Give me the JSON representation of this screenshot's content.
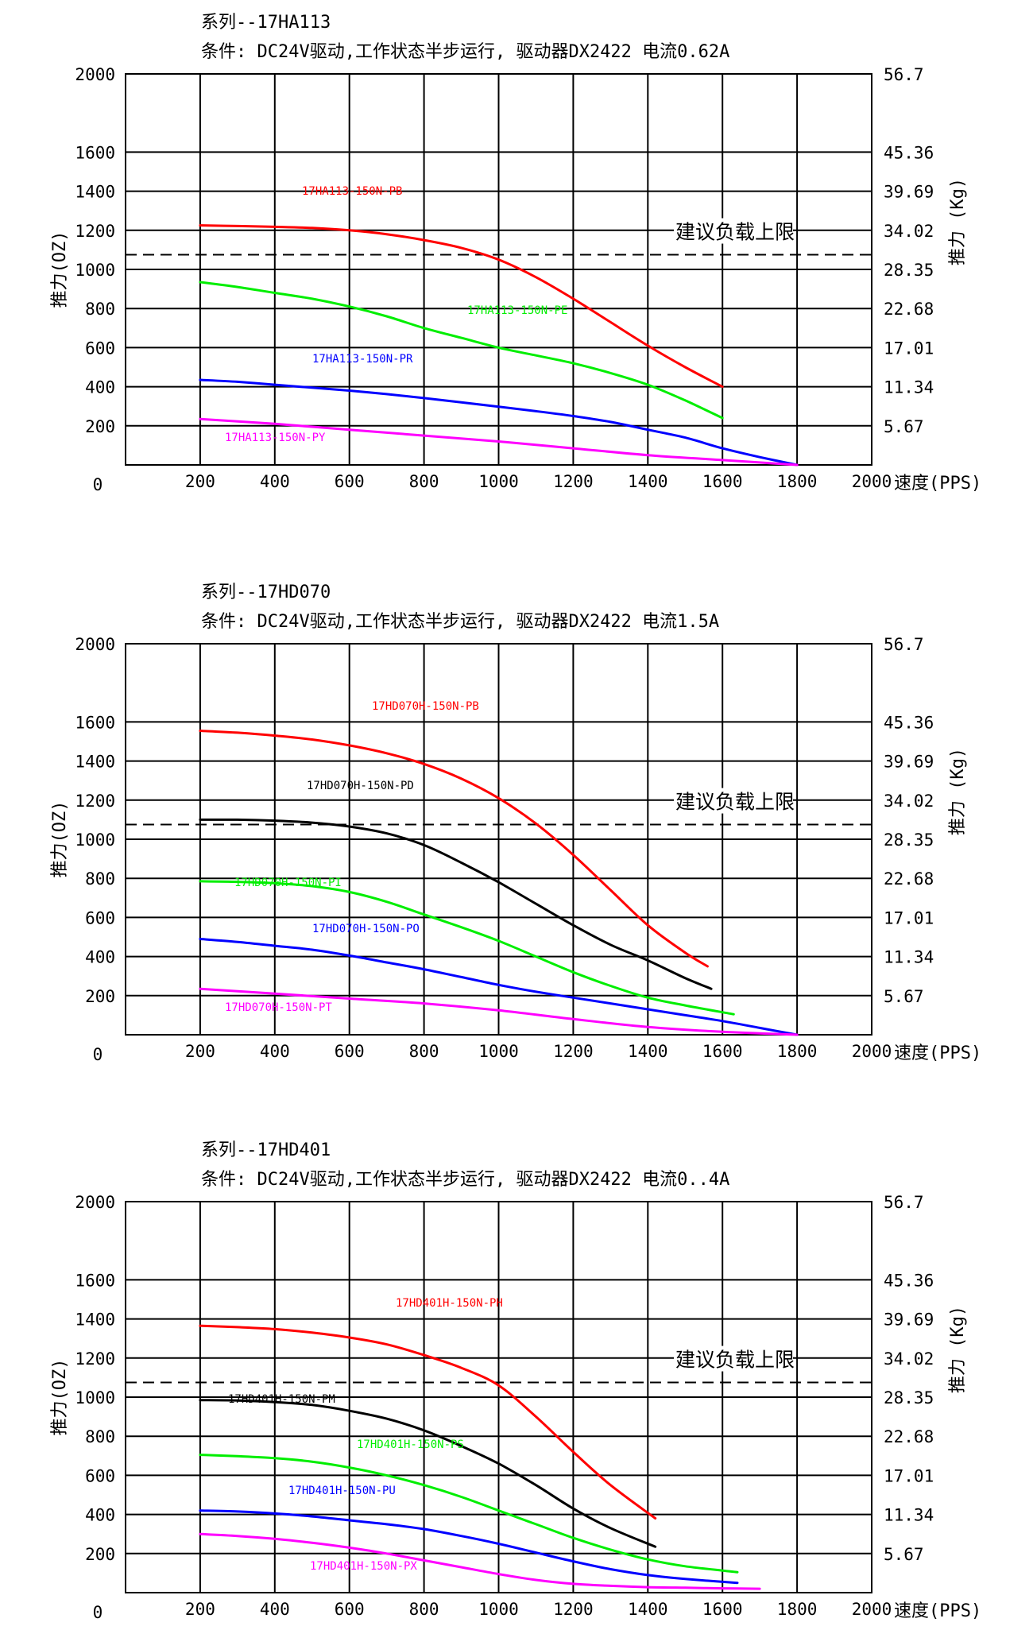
{
  "chart_data": [
    {
      "type": "line",
      "series_title": "系列--17HA113",
      "condition": "条件: DC24V驱动,工作状态半步运行, 驱动器DX2422 电流0.62A",
      "ylabel_left": "推力(OZ)",
      "ylabel_right": "推力 (Kg)",
      "xlabel": "速度(PPS)",
      "xlim": [
        0,
        2000
      ],
      "ylim": [
        0,
        2000
      ],
      "x_ticks": [
        "200",
        "400",
        "600",
        "800",
        "1000",
        "1200",
        "1400",
        "1600",
        "1800",
        "2000"
      ],
      "y_ticks": [
        "200",
        "400",
        "600",
        "800",
        "1000",
        "1200",
        "1400",
        "1600",
        "2000"
      ],
      "origin_label": "0",
      "right_ticks": [
        "56.7",
        "45.36",
        "39.69",
        "34.02",
        "28.35",
        "22.68",
        "17.01",
        "11.34",
        "5.67"
      ],
      "grid": true,
      "limit_value": 1075,
      "limit_label": "建议负载上限",
      "series": [
        {
          "name": "17HA113-150N-PB",
          "color": "#ff0000",
          "x": [
            200,
            300,
            400,
            500,
            600,
            700,
            800,
            900,
            1000,
            1100,
            1200,
            1300,
            1400,
            1500,
            1600
          ],
          "y": [
            1225,
            1222,
            1218,
            1212,
            1200,
            1180,
            1150,
            1110,
            1050,
            960,
            850,
            730,
            610,
            500,
            400
          ]
        },
        {
          "name": "17HA113-150N-PE",
          "color": "#00ee00",
          "x": [
            200,
            300,
            400,
            500,
            600,
            700,
            800,
            900,
            1000,
            1100,
            1200,
            1300,
            1400,
            1500,
            1600
          ],
          "y": [
            935,
            910,
            880,
            850,
            810,
            760,
            700,
            650,
            600,
            560,
            520,
            470,
            410,
            330,
            240
          ]
        },
        {
          "name": "17HA113-150N-PR",
          "color": "#0000ff",
          "x": [
            200,
            300,
            400,
            500,
            600,
            700,
            800,
            900,
            1000,
            1100,
            1200,
            1300,
            1400,
            1500,
            1600,
            1700,
            1800
          ],
          "y": [
            435,
            425,
            410,
            395,
            380,
            362,
            342,
            320,
            298,
            275,
            250,
            220,
            180,
            140,
            85,
            40,
            0
          ]
        },
        {
          "name": "17HA113-150N-PY",
          "color": "#ff00ff",
          "x": [
            200,
            400,
            600,
            800,
            1000,
            1200,
            1400,
            1600,
            1800
          ],
          "y": [
            235,
            210,
            180,
            150,
            120,
            85,
            50,
            25,
            0
          ]
        }
      ]
    },
    {
      "type": "line",
      "series_title": "系列--17HD070",
      "condition": "条件: DC24V驱动,工作状态半步运行, 驱动器DX2422 电流1.5A",
      "ylabel_left": "推力(OZ)",
      "ylabel_right": "推力 (Kg)",
      "xlabel": "速度(PPS)",
      "xlim": [
        0,
        2000
      ],
      "ylim": [
        0,
        2000
      ],
      "x_ticks": [
        "200",
        "400",
        "600",
        "800",
        "1000",
        "1200",
        "1400",
        "1600",
        "1800",
        "2000"
      ],
      "y_ticks": [
        "200",
        "400",
        "600",
        "800",
        "1000",
        "1200",
        "1400",
        "1600",
        "2000"
      ],
      "origin_label": "0",
      "right_ticks": [
        "56.7",
        "45.36",
        "39.69",
        "34.02",
        "28.35",
        "22.68",
        "17.01",
        "11.34",
        "5.67"
      ],
      "grid": true,
      "limit_value": 1075,
      "limit_label": "建议负载上限",
      "series": [
        {
          "name": "17HD070H-150N-PB",
          "color": "#ff0000",
          "x": [
            200,
            300,
            400,
            500,
            600,
            700,
            800,
            900,
            1000,
            1100,
            1200,
            1300,
            1400,
            1500,
            1560
          ],
          "y": [
            1555,
            1545,
            1530,
            1510,
            1480,
            1440,
            1385,
            1310,
            1210,
            1080,
            920,
            740,
            560,
            420,
            350
          ]
        },
        {
          "name": "17HD070H-150N-PD",
          "color": "#000000",
          "x": [
            200,
            300,
            400,
            500,
            600,
            700,
            800,
            900,
            1000,
            1100,
            1200,
            1300,
            1400,
            1500,
            1570
          ],
          "y": [
            1100,
            1100,
            1095,
            1085,
            1065,
            1030,
            970,
            880,
            780,
            670,
            560,
            460,
            380,
            290,
            235
          ]
        },
        {
          "name": "17HD070H-150N-PI",
          "color": "#00ee00",
          "x": [
            200,
            300,
            400,
            500,
            600,
            700,
            800,
            900,
            1000,
            1100,
            1200,
            1300,
            1400,
            1500,
            1630
          ],
          "y": [
            785,
            782,
            775,
            760,
            730,
            680,
            615,
            550,
            480,
            400,
            320,
            250,
            190,
            150,
            105
          ]
        },
        {
          "name": "17HD070H-150N-PO",
          "color": "#0000ff",
          "x": [
            200,
            300,
            400,
            500,
            600,
            700,
            800,
            900,
            1000,
            1100,
            1200,
            1300,
            1400,
            1500,
            1600,
            1700,
            1800
          ],
          "y": [
            490,
            475,
            455,
            435,
            405,
            370,
            335,
            295,
            255,
            220,
            190,
            160,
            130,
            100,
            70,
            35,
            0
          ]
        },
        {
          "name": "17HD070H-150N-PT",
          "color": "#ff00ff",
          "x": [
            200,
            400,
            600,
            800,
            1000,
            1200,
            1400,
            1600,
            1800
          ],
          "y": [
            235,
            210,
            185,
            160,
            125,
            80,
            40,
            15,
            0
          ]
        }
      ]
    },
    {
      "type": "line",
      "series_title": "系列--17HD401",
      "condition": "条件: DC24V驱动,工作状态半步运行, 驱动器DX2422 电流0..4A",
      "ylabel_left": "推力(OZ)",
      "ylabel_right": "推力 (Kg)",
      "xlabel": "速度(PPS)",
      "xlim": [
        0,
        2000
      ],
      "ylim": [
        0,
        2000
      ],
      "x_ticks": [
        "200",
        "400",
        "600",
        "800",
        "1000",
        "1200",
        "1400",
        "1600",
        "1800",
        "2000"
      ],
      "y_ticks": [
        "200",
        "400",
        "600",
        "800",
        "1000",
        "1200",
        "1400",
        "1600",
        "2000"
      ],
      "origin_label": "0",
      "right_ticks": [
        "56.7",
        "45.36",
        "39.69",
        "34.02",
        "28.35",
        "22.68",
        "17.01",
        "11.34",
        "5.67"
      ],
      "grid": true,
      "limit_value": 1075,
      "limit_label": "建议负载上限",
      "series": [
        {
          "name": "17HD401H-150N-PH",
          "color": "#ff0000",
          "x": [
            200,
            300,
            400,
            500,
            600,
            700,
            800,
            900,
            1000,
            1100,
            1200,
            1300,
            1420
          ],
          "y": [
            1365,
            1358,
            1348,
            1330,
            1305,
            1270,
            1215,
            1150,
            1060,
            900,
            720,
            550,
            380
          ]
        },
        {
          "name": "17HD401H-150N-PM",
          "color": "#000000",
          "x": [
            200,
            300,
            400,
            500,
            600,
            700,
            800,
            900,
            1000,
            1100,
            1200,
            1300,
            1420
          ],
          "y": [
            985,
            983,
            975,
            960,
            930,
            890,
            830,
            750,
            660,
            550,
            430,
            330,
            235
          ]
        },
        {
          "name": "17HD401H-150N-PS",
          "color": "#00ee00",
          "x": [
            200,
            300,
            400,
            500,
            600,
            700,
            800,
            900,
            1000,
            1100,
            1200,
            1300,
            1400,
            1500,
            1640
          ],
          "y": [
            705,
            698,
            688,
            670,
            640,
            600,
            550,
            490,
            420,
            350,
            280,
            220,
            170,
            135,
            105
          ]
        },
        {
          "name": "17HD401H-150N-PU",
          "color": "#0000ff",
          "x": [
            200,
            300,
            400,
            500,
            600,
            700,
            800,
            900,
            1000,
            1100,
            1200,
            1300,
            1400,
            1500,
            1640
          ],
          "y": [
            420,
            415,
            405,
            390,
            370,
            350,
            325,
            290,
            250,
            205,
            160,
            120,
            90,
            70,
            50
          ]
        },
        {
          "name": "17HD401H-150N-PX",
          "color": "#ff00ff",
          "x": [
            200,
            300,
            400,
            500,
            600,
            700,
            800,
            900,
            1000,
            1100,
            1200,
            1300,
            1400,
            1500,
            1600,
            1700
          ],
          "y": [
            300,
            290,
            275,
            255,
            230,
            200,
            165,
            130,
            95,
            65,
            45,
            35,
            28,
            25,
            22,
            20
          ]
        }
      ]
    }
  ]
}
